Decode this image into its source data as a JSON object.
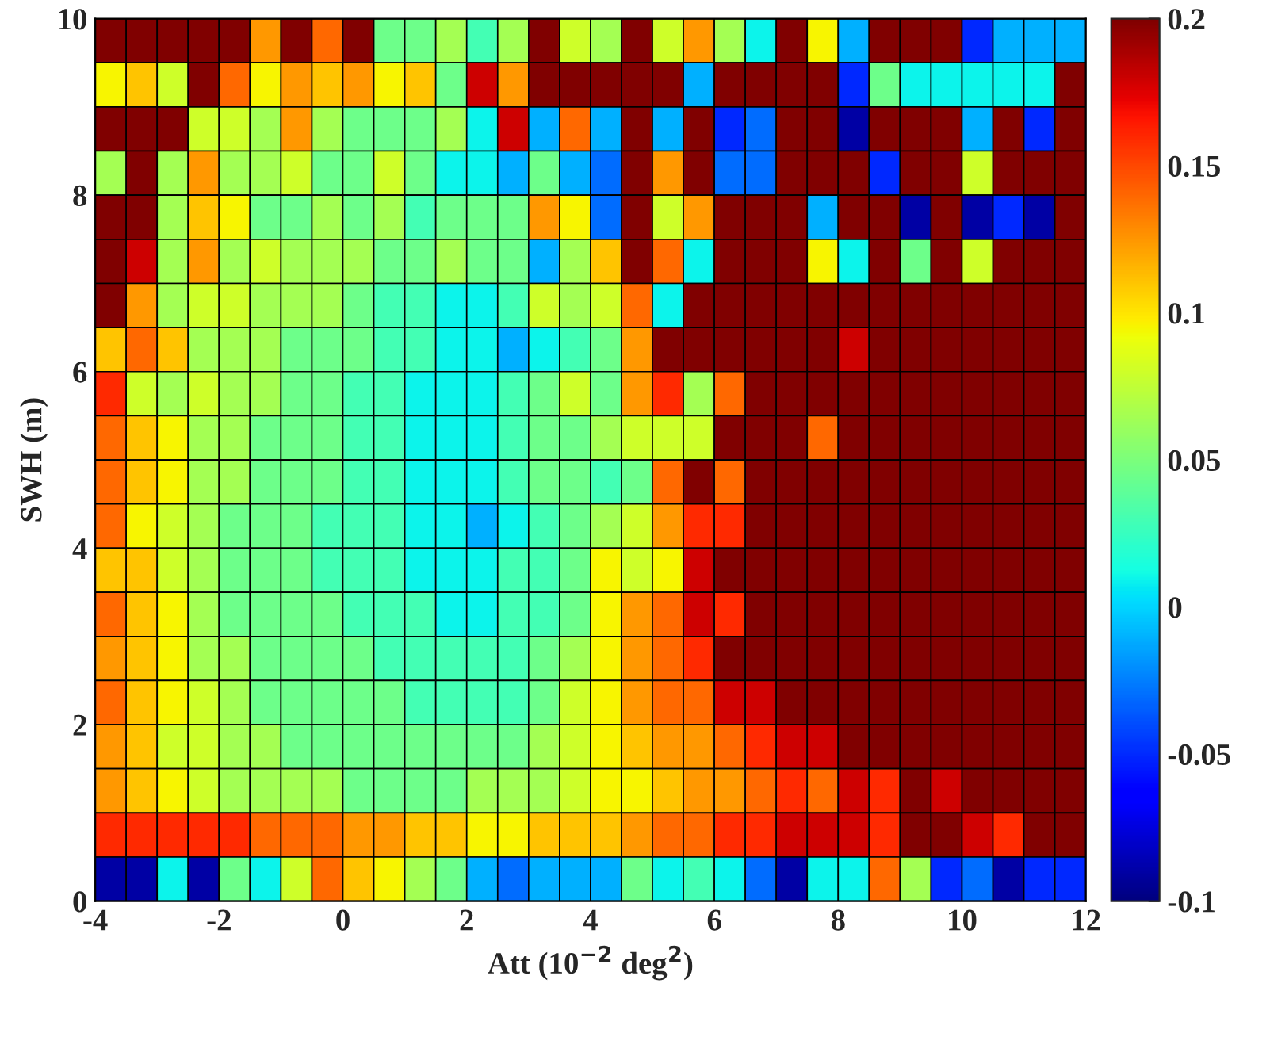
{
  "chart_data": {
    "type": "heatmap",
    "xlabel": "Att (10$^{−2}$ deg$^{2}$)",
    "ylabel": "SWH (m)",
    "xlim": [
      -4,
      12
    ],
    "xticks": [
      -4,
      -2,
      0,
      2,
      4,
      6,
      8,
      10,
      12
    ],
    "ylim": [
      0,
      10
    ],
    "yticks": [
      0,
      2,
      4,
      6,
      8,
      10
    ],
    "clim": [
      -0.1,
      0.2
    ],
    "cticks": [
      -0.1,
      -0.05,
      0,
      0.05,
      0.1,
      0.15,
      0.2
    ],
    "cells": [
      [
        0.2,
        0.2,
        0.2,
        0.2,
        0.2,
        0.125,
        0.2,
        0.14,
        0.2,
        0.045,
        0.045,
        0.065,
        0.03,
        0.065,
        0.2,
        0.08,
        0.065,
        0.2,
        0.08,
        0.125,
        0.065,
        0.01,
        0.2,
        0.095,
        -0.01,
        0.2,
        0.2,
        0.2,
        -0.05,
        -0.01,
        -0.01,
        -0.01
      ],
      [
        0.095,
        0.11,
        0.08,
        0.2,
        0.14,
        0.095,
        0.125,
        0.11,
        0.125,
        0.095,
        0.11,
        0.045,
        0.18,
        0.125,
        0.2,
        0.2,
        0.2,
        0.2,
        0.2,
        -0.01,
        0.2,
        0.2,
        0.2,
        0.2,
        -0.05,
        0.045,
        0.01,
        0.01,
        0.01,
        0.01,
        0.01,
        0.2
      ],
      [
        0.2,
        0.2,
        0.2,
        0.08,
        0.08,
        0.065,
        0.125,
        0.065,
        0.045,
        0.045,
        0.045,
        0.065,
        0.01,
        0.18,
        -0.01,
        0.14,
        -0.01,
        0.2,
        -0.01,
        0.2,
        -0.05,
        -0.03,
        0.2,
        0.2,
        -0.09,
        0.2,
        0.2,
        0.2,
        -0.01,
        0.2,
        -0.05,
        0.2
      ],
      [
        0.065,
        0.2,
        0.065,
        0.125,
        0.065,
        0.065,
        0.08,
        0.045,
        0.045,
        0.08,
        0.045,
        0.01,
        0.01,
        -0.01,
        0.045,
        -0.01,
        -0.03,
        0.2,
        0.125,
        0.2,
        -0.03,
        -0.03,
        0.2,
        0.2,
        0.2,
        -0.05,
        0.2,
        0.2,
        0.08,
        0.2,
        0.2,
        0.2
      ],
      [
        0.2,
        0.2,
        0.065,
        0.11,
        0.095,
        0.045,
        0.045,
        0.065,
        0.045,
        0.065,
        0.03,
        0.045,
        0.045,
        0.045,
        0.125,
        0.095,
        -0.03,
        0.2,
        0.08,
        0.125,
        0.2,
        0.2,
        0.2,
        -0.01,
        0.2,
        0.2,
        -0.09,
        0.2,
        -0.09,
        -0.05,
        -0.09,
        0.2
      ],
      [
        0.2,
        0.18,
        0.065,
        0.125,
        0.065,
        0.08,
        0.065,
        0.065,
        0.065,
        0.045,
        0.045,
        0.065,
        0.045,
        0.045,
        -0.01,
        0.065,
        0.11,
        0.2,
        0.14,
        0.01,
        0.2,
        0.2,
        0.2,
        0.095,
        0.01,
        0.2,
        0.045,
        0.2,
        0.08,
        0.2,
        0.2,
        0.2
      ],
      [
        0.2,
        0.125,
        0.065,
        0.08,
        0.08,
        0.065,
        0.065,
        0.065,
        0.045,
        0.03,
        0.03,
        0.01,
        0.01,
        0.03,
        0.08,
        0.065,
        0.08,
        0.14,
        0.01,
        0.2,
        0.2,
        0.2,
        0.2,
        0.2,
        0.2,
        0.2,
        0.2,
        0.2,
        0.2,
        0.2,
        0.2,
        0.2
      ],
      [
        0.11,
        0.14,
        0.11,
        0.065,
        0.065,
        0.065,
        0.045,
        0.045,
        0.045,
        0.03,
        0.03,
        0.01,
        0.01,
        -0.01,
        0.01,
        0.03,
        0.045,
        0.125,
        0.2,
        0.2,
        0.2,
        0.2,
        0.2,
        0.2,
        0.18,
        0.2,
        0.2,
        0.2,
        0.2,
        0.2,
        0.2,
        0.2
      ],
      [
        0.16,
        0.08,
        0.065,
        0.08,
        0.065,
        0.065,
        0.045,
        0.045,
        0.03,
        0.03,
        0.01,
        0.01,
        0.01,
        0.03,
        0.045,
        0.08,
        0.045,
        0.125,
        0.16,
        0.065,
        0.14,
        0.2,
        0.2,
        0.2,
        0.2,
        0.2,
        0.2,
        0.2,
        0.2,
        0.2,
        0.2,
        0.2
      ],
      [
        0.14,
        0.11,
        0.095,
        0.065,
        0.065,
        0.045,
        0.045,
        0.045,
        0.03,
        0.03,
        0.01,
        0.01,
        0.01,
        0.03,
        0.045,
        0.045,
        0.065,
        0.08,
        0.08,
        0.08,
        0.2,
        0.2,
        0.2,
        0.14,
        0.2,
        0.2,
        0.2,
        0.2,
        0.2,
        0.2,
        0.2,
        0.2
      ],
      [
        0.14,
        0.11,
        0.095,
        0.065,
        0.065,
        0.045,
        0.045,
        0.045,
        0.03,
        0.03,
        0.01,
        0.01,
        0.01,
        0.03,
        0.045,
        0.045,
        0.03,
        0.045,
        0.14,
        0.2,
        0.14,
        0.2,
        0.2,
        0.2,
        0.2,
        0.2,
        0.2,
        0.2,
        0.2,
        0.2,
        0.2,
        0.2
      ],
      [
        0.14,
        0.095,
        0.08,
        0.065,
        0.045,
        0.045,
        0.045,
        0.03,
        0.03,
        0.03,
        0.01,
        0.01,
        -0.01,
        0.01,
        0.03,
        0.045,
        0.065,
        0.08,
        0.125,
        0.16,
        0.16,
        0.2,
        0.2,
        0.2,
        0.2,
        0.2,
        0.2,
        0.2,
        0.2,
        0.2,
        0.2,
        0.2
      ],
      [
        0.11,
        0.11,
        0.08,
        0.065,
        0.045,
        0.045,
        0.045,
        0.03,
        0.03,
        0.03,
        0.01,
        0.01,
        0.01,
        0.03,
        0.03,
        0.045,
        0.095,
        0.08,
        0.095,
        0.18,
        0.2,
        0.2,
        0.2,
        0.2,
        0.2,
        0.2,
        0.2,
        0.2,
        0.2,
        0.2,
        0.2,
        0.2
      ],
      [
        0.14,
        0.11,
        0.095,
        0.065,
        0.045,
        0.045,
        0.045,
        0.045,
        0.03,
        0.03,
        0.03,
        0.01,
        0.01,
        0.03,
        0.03,
        0.045,
        0.095,
        0.125,
        0.14,
        0.18,
        0.16,
        0.2,
        0.2,
        0.2,
        0.2,
        0.2,
        0.2,
        0.2,
        0.2,
        0.2,
        0.2,
        0.2
      ],
      [
        0.125,
        0.11,
        0.095,
        0.065,
        0.065,
        0.045,
        0.045,
        0.045,
        0.045,
        0.03,
        0.03,
        0.03,
        0.03,
        0.03,
        0.045,
        0.065,
        0.095,
        0.125,
        0.14,
        0.16,
        0.2,
        0.2,
        0.2,
        0.2,
        0.2,
        0.2,
        0.2,
        0.2,
        0.2,
        0.2,
        0.2,
        0.2
      ],
      [
        0.14,
        0.11,
        0.095,
        0.08,
        0.065,
        0.045,
        0.045,
        0.045,
        0.045,
        0.045,
        0.03,
        0.03,
        0.03,
        0.03,
        0.045,
        0.08,
        0.095,
        0.125,
        0.14,
        0.14,
        0.18,
        0.18,
        0.2,
        0.2,
        0.2,
        0.2,
        0.2,
        0.2,
        0.2,
        0.2,
        0.2,
        0.2
      ],
      [
        0.125,
        0.11,
        0.08,
        0.08,
        0.065,
        0.065,
        0.045,
        0.045,
        0.045,
        0.045,
        0.045,
        0.045,
        0.045,
        0.045,
        0.065,
        0.08,
        0.095,
        0.11,
        0.125,
        0.125,
        0.14,
        0.16,
        0.18,
        0.18,
        0.2,
        0.2,
        0.2,
        0.2,
        0.2,
        0.2,
        0.2,
        0.2
      ],
      [
        0.125,
        0.11,
        0.095,
        0.08,
        0.065,
        0.065,
        0.065,
        0.065,
        0.045,
        0.045,
        0.045,
        0.045,
        0.065,
        0.065,
        0.065,
        0.08,
        0.095,
        0.095,
        0.11,
        0.125,
        0.125,
        0.14,
        0.16,
        0.14,
        0.18,
        0.16,
        0.2,
        0.18,
        0.2,
        0.2,
        0.2,
        0.2
      ],
      [
        0.16,
        0.16,
        0.16,
        0.16,
        0.16,
        0.14,
        0.14,
        0.14,
        0.125,
        0.125,
        0.11,
        0.11,
        0.095,
        0.095,
        0.11,
        0.11,
        0.11,
        0.125,
        0.14,
        0.14,
        0.16,
        0.16,
        0.18,
        0.18,
        0.18,
        0.16,
        0.2,
        0.2,
        0.18,
        0.16,
        0.2,
        0.2
      ],
      [
        -0.09,
        -0.09,
        0.01,
        -0.09,
        0.045,
        0.01,
        0.08,
        0.14,
        0.11,
        0.095,
        0.065,
        0.045,
        -0.01,
        -0.03,
        -0.01,
        -0.01,
        -0.01,
        0.045,
        0.01,
        0.03,
        0.01,
        -0.03,
        -0.09,
        0.01,
        0.01,
        0.14,
        0.065,
        -0.05,
        -0.03,
        -0.09,
        -0.05,
        -0.05
      ]
    ]
  }
}
